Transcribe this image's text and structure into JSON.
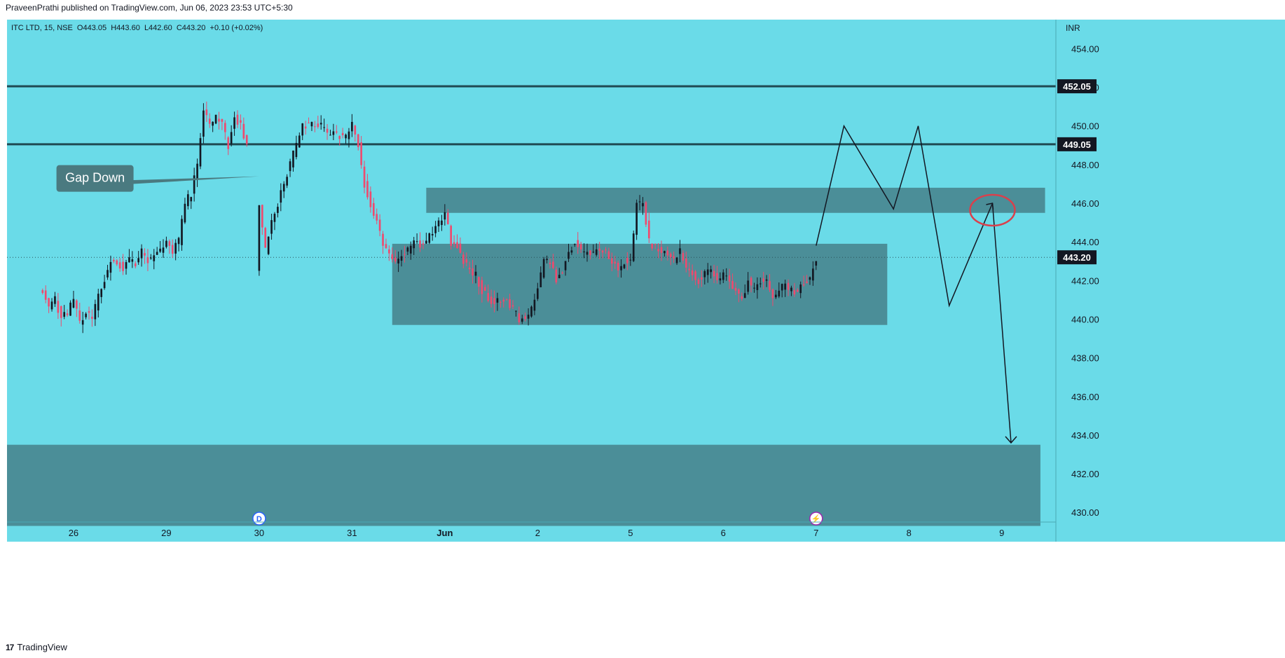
{
  "header": {
    "published": "PraveenPrathi published on TradingView.com, Jun 06, 2023 23:53 UTC+5:30"
  },
  "footer": {
    "brand": "TradingView"
  },
  "chart_data": {
    "type": "candlestick",
    "symbol_line": "ITC LTD, 15, NSE  O443.05  H443.60  L442.60  C443.20  +0.10 (+0.02%)",
    "currency": "INR",
    "ylim": [
      429.5,
      455.5
    ],
    "yticks": [
      454,
      452,
      450,
      448,
      446,
      444,
      442,
      440,
      438,
      436,
      434,
      432,
      430
    ],
    "ytick_labels": [
      "454.00",
      "452.00",
      "450.00",
      "448.00",
      "446.00",
      "444.00",
      "442.00",
      "440.00",
      "438.00",
      "436.00",
      "434.00",
      "432.00",
      "430.00"
    ],
    "xticks": [
      {
        "label": "26",
        "bar": 10,
        "bold": false
      },
      {
        "label": "29",
        "bar": 40,
        "bold": false
      },
      {
        "label": "30",
        "bar": 70,
        "bold": false
      },
      {
        "label": "31",
        "bar": 100,
        "bold": false
      },
      {
        "label": "Jun",
        "bar": 130,
        "bold": true
      },
      {
        "label": "2",
        "bar": 160,
        "bold": false
      },
      {
        "label": "5",
        "bar": 190,
        "bold": false
      },
      {
        "label": "6",
        "bar": 220,
        "bold": false
      },
      {
        "label": "7",
        "bar": 250,
        "bold": false
      },
      {
        "label": "8",
        "bar": 280,
        "bold": false
      },
      {
        "label": "9",
        "bar": 310,
        "bold": false
      }
    ],
    "bar_range": [
      -11.5,
      327.5
    ],
    "anchors": [
      [
        0,
        441.5
      ],
      [
        2,
        440.5
      ],
      [
        4,
        441.0
      ],
      [
        6,
        440.0
      ],
      [
        8,
        440.3
      ],
      [
        10,
        441.0
      ],
      [
        12,
        439.8
      ],
      [
        14,
        440.3
      ],
      [
        16,
        440.0
      ],
      [
        18,
        441.2
      ],
      [
        20,
        442.0
      ],
      [
        22,
        443.1
      ],
      [
        24,
        443.0
      ],
      [
        26,
        442.6
      ],
      [
        28,
        443.1
      ],
      [
        30,
        442.9
      ],
      [
        32,
        443.5
      ],
      [
        34,
        443.0
      ],
      [
        36,
        443.3
      ],
      [
        38,
        443.6
      ],
      [
        40,
        444.0
      ],
      [
        42,
        443.5
      ],
      [
        44,
        444.0
      ],
      [
        46,
        446.0
      ],
      [
        48,
        446.5
      ],
      [
        50,
        448.0
      ],
      [
        52,
        451.0
      ],
      [
        54,
        450.0
      ],
      [
        56,
        450.5
      ],
      [
        58,
        450.0
      ],
      [
        60,
        449.0
      ],
      [
        62,
        450.5
      ],
      [
        64,
        450.0
      ],
      [
        66,
        449.0
      ],
      [
        70,
        446.0
      ],
      [
        72,
        443.5
      ],
      [
        74,
        445.0
      ],
      [
        76,
        446.0
      ],
      [
        78,
        447.0
      ],
      [
        80,
        448.0
      ],
      [
        82,
        449.0
      ],
      [
        84,
        450.0
      ],
      [
        86,
        450.0
      ],
      [
        88,
        450.2
      ],
      [
        90,
        450.0
      ],
      [
        92,
        449.5
      ],
      [
        94,
        449.6
      ],
      [
        96,
        449.5
      ],
      [
        98,
        449.4
      ],
      [
        100,
        450.0
      ],
      [
        102,
        449.0
      ],
      [
        104,
        447.0
      ],
      [
        106,
        446.0
      ],
      [
        108,
        445.0
      ],
      [
        110,
        444.0
      ],
      [
        112,
        443.5
      ],
      [
        114,
        443.0
      ],
      [
        116,
        443.3
      ],
      [
        118,
        443.5
      ],
      [
        120,
        444.0
      ],
      [
        122,
        443.8
      ],
      [
        124,
        444.0
      ],
      [
        126,
        444.5
      ],
      [
        128,
        445.0
      ],
      [
        130,
        445.5
      ],
      [
        132,
        444.0
      ],
      [
        134,
        443.8
      ],
      [
        136,
        443.0
      ],
      [
        138,
        442.5
      ],
      [
        140,
        442.3
      ],
      [
        142,
        441.5
      ],
      [
        144,
        441.0
      ],
      [
        146,
        441.0
      ],
      [
        148,
        441.0
      ],
      [
        150,
        441.0
      ],
      [
        152,
        440.5
      ],
      [
        154,
        440.0
      ],
      [
        156,
        440.0
      ],
      [
        158,
        440.5
      ],
      [
        160,
        441.5
      ],
      [
        162,
        443.0
      ],
      [
        164,
        443.0
      ],
      [
        166,
        442.0
      ],
      [
        168,
        442.5
      ],
      [
        170,
        443.5
      ],
      [
        172,
        444.0
      ],
      [
        174,
        443.5
      ],
      [
        176,
        443.5
      ],
      [
        178,
        443.5
      ],
      [
        180,
        443.7
      ],
      [
        182,
        443.5
      ],
      [
        184,
        443.0
      ],
      [
        186,
        442.5
      ],
      [
        188,
        443.0
      ],
      [
        190,
        443.0
      ],
      [
        192,
        446.0
      ],
      [
        194,
        446.0
      ],
      [
        196,
        444.0
      ],
      [
        198,
        443.7
      ],
      [
        200,
        443.5
      ],
      [
        202,
        443.3
      ],
      [
        204,
        443.0
      ],
      [
        206,
        443.5
      ],
      [
        208,
        442.5
      ],
      [
        210,
        442.3
      ],
      [
        212,
        442.0
      ],
      [
        214,
        442.3
      ],
      [
        216,
        442.5
      ],
      [
        218,
        442.0
      ],
      [
        220,
        442.3
      ],
      [
        222,
        442.0
      ],
      [
        224,
        441.5
      ],
      [
        226,
        441.0
      ],
      [
        228,
        442.0
      ],
      [
        230,
        441.5
      ],
      [
        232,
        442.0
      ],
      [
        234,
        442.0
      ],
      [
        236,
        441.0
      ],
      [
        238,
        441.5
      ],
      [
        240,
        441.7
      ],
      [
        242,
        441.5
      ],
      [
        244,
        441.5
      ],
      [
        246,
        441.8
      ],
      [
        248,
        442.0
      ],
      [
        250,
        443.2
      ]
    ],
    "zones": [
      {
        "name": "resistance-zone",
        "x0": 124,
        "x1": 324,
        "y0": 445.5,
        "y1": 446.8
      },
      {
        "name": "consolidation-box",
        "x0": 113,
        "x1": 273,
        "y0": 439.7,
        "y1": 443.9
      },
      {
        "name": "demand-zone",
        "x0": -11.5,
        "x1": 322.5,
        "y0": 429.3,
        "y1": 433.5
      }
    ],
    "hlines": [
      {
        "price": 452.05,
        "label": "452.05"
      },
      {
        "price": 449.05,
        "label": "449.05"
      }
    ],
    "last_price": {
      "price": 443.2,
      "label": "443.20"
    },
    "annotation": {
      "text": "Gap Down",
      "bar": 38,
      "price": 446.7,
      "pointer_to_bar": 70
    },
    "projection_path": [
      [
        250,
        443.8
      ],
      [
        259,
        450.0
      ],
      [
        275,
        445.7
      ],
      [
        283,
        450.0
      ],
      [
        293,
        440.7
      ],
      [
        307,
        446.0
      ],
      [
        313,
        433.6
      ]
    ],
    "circle": {
      "bar": 307,
      "price": 446.0
    },
    "event_markers": [
      {
        "bar": 70,
        "symbol": "D",
        "color": "#2962ff"
      },
      {
        "bar": 250,
        "symbol": "⚡",
        "color": "#9c27b0"
      }
    ],
    "colors": {
      "background": "#6adbe8",
      "up": "#131722",
      "down": "#ee4a6e",
      "zone": "#4a8a94",
      "line": "#1f4a52",
      "circle": "#d9404c"
    }
  }
}
